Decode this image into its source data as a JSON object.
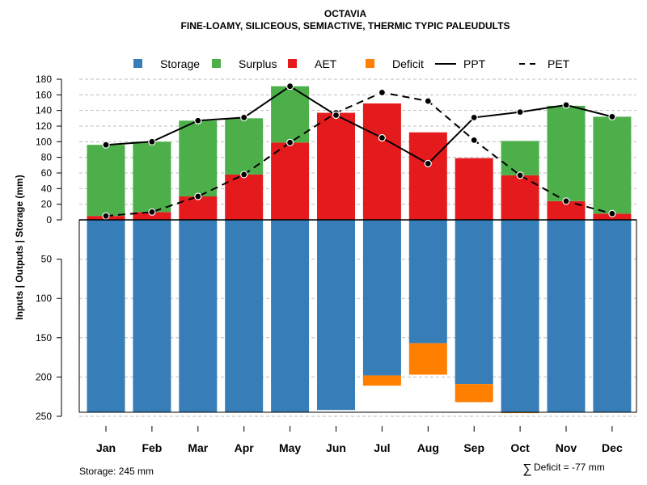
{
  "chart_data": {
    "type": "bar",
    "title": "OCTAVIA",
    "subtitle": "FINE-LOAMY, SILICEOUS, SEMIACTIVE, THERMIC TYPIC PALEUDULTS",
    "ylabel": "Inputs | Outputs | Storage    (mm)",
    "categories": [
      "Jan",
      "Feb",
      "Mar",
      "Apr",
      "May",
      "Jun",
      "Jul",
      "Aug",
      "Sep",
      "Oct",
      "Nov",
      "Dec"
    ],
    "upper_axis": {
      "ylim": [
        0,
        180
      ],
      "ticks": [
        0,
        20,
        40,
        60,
        80,
        100,
        120,
        140,
        160,
        180
      ],
      "tick_labels": [
        "0",
        "20",
        "40",
        "60",
        "80",
        "100",
        "120",
        "140",
        "160",
        "180"
      ]
    },
    "lower_axis": {
      "ylim": [
        0,
        250
      ],
      "ticks": [
        50,
        100,
        150,
        200,
        250
      ],
      "tick_labels": [
        "50",
        "100",
        "150",
        "200",
        "250"
      ]
    },
    "legend": [
      {
        "label": "Storage",
        "kind": "box",
        "color": "#377EB8"
      },
      {
        "label": "Surplus",
        "kind": "box",
        "color": "#4DAF4A"
      },
      {
        "label": "AET",
        "kind": "box",
        "color": "#E41A1C"
      },
      {
        "label": "Deficit",
        "kind": "box",
        "color": "#FF7F00"
      },
      {
        "label": "PPT",
        "kind": "solid-line",
        "color": "#000000"
      },
      {
        "label": "PET",
        "kind": "dashed-line",
        "color": "#000000"
      }
    ],
    "legend_position": "top",
    "series": [
      {
        "name": "AET",
        "values": [
          5,
          10,
          30,
          58,
          99,
          137,
          149,
          112,
          79,
          57,
          24,
          8
        ]
      },
      {
        "name": "Surplus",
        "values": [
          91,
          90,
          97,
          72,
          72,
          0,
          0,
          0,
          0,
          44,
          122,
          124
        ]
      },
      {
        "name": "Storage",
        "values": [
          245,
          245,
          245,
          245,
          245,
          242,
          198,
          157,
          209,
          245,
          245,
          245
        ]
      },
      {
        "name": "Deficit",
        "values": [
          0,
          0,
          0,
          0,
          0,
          0,
          13,
          40,
          23,
          1,
          0,
          0
        ]
      },
      {
        "name": "PPT",
        "values": [
          96,
          100,
          127,
          131,
          171,
          134,
          105,
          72,
          131,
          138,
          147,
          132
        ]
      },
      {
        "name": "PET",
        "values": [
          5,
          10,
          30,
          58,
          99,
          137,
          163,
          152,
          102,
          57,
          24,
          8
        ]
      }
    ],
    "grid": true,
    "colors": {
      "storage": "#377EB8",
      "surplus": "#4DAF4A",
      "aet": "#E41A1C",
      "deficit": "#FF7F00",
      "grid": "#BEBEBE"
    }
  },
  "footer": {
    "storage_note": "Storage: 245 mm",
    "deficit_symbol": "∑",
    "deficit_note": "Deficit = -77 mm"
  }
}
